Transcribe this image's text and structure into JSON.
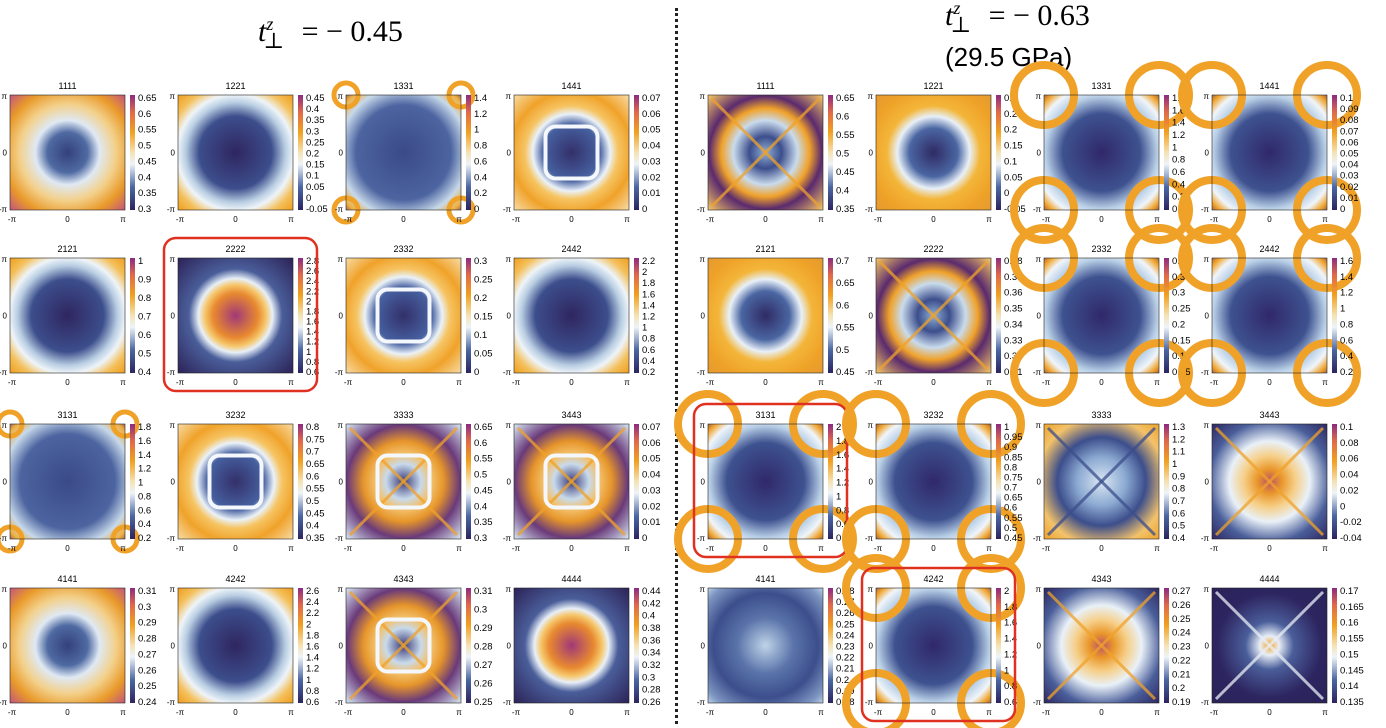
{
  "left_title": {
    "var": "t",
    "sup": "z",
    "sub": "⊥",
    "rest": " = − 0.45"
  },
  "right_title": {
    "var": "t",
    "sup": "z",
    "sub": "⊥",
    "rest": " = − 0.63",
    "line2": "(29.5 GPa)"
  },
  "axis_ticks": {
    "x": [
      "-π",
      "0",
      "π"
    ],
    "y": [
      "π",
      "0",
      "-π"
    ]
  },
  "colors": {
    "low": "#3a2060",
    "mid_dark": "#3c4e8c",
    "mid_light": "#e6eff7",
    "high": "#f3ac1c",
    "accent_box": "#e03020"
  },
  "panels": [
    {
      "group": "left",
      "row": 0,
      "col": 0,
      "label": "1111",
      "cbar": [
        "0.65",
        "0.6",
        "0.55",
        "0.5",
        "0.45",
        "0.4",
        "0.35",
        "0.3"
      ],
      "pattern": "corners-orange"
    },
    {
      "group": "left",
      "row": 0,
      "col": 1,
      "label": "1221",
      "cbar": [
        "0.45",
        "0.4",
        "0.35",
        "0.3",
        "0.25",
        "0.2",
        "0.15",
        "0.1",
        "0.05",
        "0",
        "-0.05"
      ],
      "pattern": "square-blue"
    },
    {
      "group": "left",
      "row": 0,
      "col": 2,
      "label": "1331",
      "cbar": [
        "1.4",
        "1.2",
        "1",
        "0.8",
        "0.6",
        "0.4",
        "0.2",
        "0"
      ],
      "pattern": "blue-corner-spots"
    },
    {
      "group": "left",
      "row": 0,
      "col": 3,
      "label": "1441",
      "cbar": [
        "0.07",
        "0.06",
        "0.05",
        "0.04",
        "0.03",
        "0.02",
        "0.01",
        "0"
      ],
      "pattern": "orange-frame"
    },
    {
      "group": "left",
      "row": 1,
      "col": 0,
      "label": "2121",
      "cbar": [
        "1",
        "0.9",
        "0.8",
        "0.7",
        "0.6",
        "0.5",
        "0.4"
      ],
      "pattern": "square-blue"
    },
    {
      "group": "left",
      "row": 1,
      "col": 1,
      "label": "2222",
      "cbar": [
        "2.8",
        "2.6",
        "2.4",
        "2.2",
        "2",
        "1.8",
        "1.6",
        "1.4",
        "1.2",
        "1",
        "0.8",
        "0.6"
      ],
      "pattern": "inner-orange",
      "highlight": true
    },
    {
      "group": "left",
      "row": 1,
      "col": 2,
      "label": "2332",
      "cbar": [
        "0.3",
        "0.25",
        "0.2",
        "0.15",
        "0.1",
        "0.05",
        "0"
      ],
      "pattern": "orange-frame"
    },
    {
      "group": "left",
      "row": 1,
      "col": 3,
      "label": "2442",
      "cbar": [
        "2.2",
        "2",
        "1.8",
        "1.6",
        "1.4",
        "1.2",
        "1",
        "0.8",
        "0.6",
        "0.4",
        "0.2"
      ],
      "pattern": "square-blue"
    },
    {
      "group": "left",
      "row": 2,
      "col": 0,
      "label": "3131",
      "cbar": [
        "1.8",
        "1.6",
        "1.4",
        "1.2",
        "1",
        "0.8",
        "0.6",
        "0.4",
        "0.2"
      ],
      "pattern": "blue-corner-spots"
    },
    {
      "group": "left",
      "row": 2,
      "col": 1,
      "label": "3232",
      "cbar": [
        "0.8",
        "0.75",
        "0.7",
        "0.65",
        "0.6",
        "0.55",
        "0.5",
        "0.45",
        "0.4",
        "0.35"
      ],
      "pattern": "orange-frame"
    },
    {
      "group": "left",
      "row": 2,
      "col": 2,
      "label": "3333",
      "cbar": [
        "0.65",
        "0.6",
        "0.55",
        "0.5",
        "0.45",
        "0.4",
        "0.35",
        "0.3"
      ],
      "pattern": "cross-orange"
    },
    {
      "group": "left",
      "row": 2,
      "col": 3,
      "label": "3443",
      "cbar": [
        "0.07",
        "0.06",
        "0.05",
        "0.04",
        "0.03",
        "0.02",
        "0.01",
        "0"
      ],
      "pattern": "cross-orange"
    },
    {
      "group": "left",
      "row": 3,
      "col": 0,
      "label": "4141",
      "cbar": [
        "0.31",
        "0.3",
        "0.29",
        "0.28",
        "0.27",
        "0.26",
        "0.25",
        "0.24"
      ],
      "pattern": "corners-orange"
    },
    {
      "group": "left",
      "row": 3,
      "col": 1,
      "label": "4242",
      "cbar": [
        "2.6",
        "2.4",
        "2.2",
        "2",
        "1.8",
        "1.6",
        "1.4",
        "1.2",
        "1",
        "0.8",
        "0.6"
      ],
      "pattern": "square-blue"
    },
    {
      "group": "left",
      "row": 3,
      "col": 2,
      "label": "4343",
      "cbar": [
        "0.31",
        "0.3",
        "0.29",
        "0.28",
        "0.27",
        "0.26",
        "0.25"
      ],
      "pattern": "cross-orange"
    },
    {
      "group": "left",
      "row": 3,
      "col": 3,
      "label": "4444",
      "cbar": [
        "0.44",
        "0.42",
        "0.4",
        "0.38",
        "0.36",
        "0.34",
        "0.32",
        "0.3",
        "0.28",
        "0.26"
      ],
      "pattern": "inner-orange"
    },
    {
      "group": "right",
      "row": 0,
      "col": 0,
      "label": "1111",
      "cbar": [
        "0.65",
        "0.6",
        "0.55",
        "0.5",
        "0.45",
        "0.4",
        "0.35"
      ],
      "pattern": "ring-cross"
    },
    {
      "group": "right",
      "row": 0,
      "col": 1,
      "label": "1221",
      "cbar": [
        "0.3",
        "0.25",
        "0.2",
        "0.15",
        "0.1",
        "0.05",
        "0",
        "-0.05"
      ],
      "pattern": "ring-orange"
    },
    {
      "group": "right",
      "row": 0,
      "col": 2,
      "label": "1331",
      "cbar": [
        "1.8",
        "1.6",
        "1.4",
        "1.2",
        "1",
        "0.8",
        "0.6",
        "0.4",
        "0.2",
        "0"
      ],
      "pattern": "blue-arcs"
    },
    {
      "group": "right",
      "row": 0,
      "col": 3,
      "label": "1441",
      "cbar": [
        "0.1",
        "0.09",
        "0.08",
        "0.07",
        "0.06",
        "0.05",
        "0.04",
        "0.03",
        "0.02",
        "0.01",
        "0"
      ],
      "pattern": "blue-arcs"
    },
    {
      "group": "right",
      "row": 1,
      "col": 0,
      "label": "2121",
      "cbar": [
        "0.7",
        "0.65",
        "0.6",
        "0.55",
        "0.5",
        "0.45"
      ],
      "pattern": "ring-orange"
    },
    {
      "group": "right",
      "row": 1,
      "col": 1,
      "label": "2222",
      "cbar": [
        "0.38",
        "0.37",
        "0.36",
        "0.35",
        "0.34",
        "0.33",
        "0.32",
        "0.31"
      ],
      "pattern": "ring-cross"
    },
    {
      "group": "right",
      "row": 1,
      "col": 2,
      "label": "2332",
      "cbar": [
        "0.4",
        "0.35",
        "0.3",
        "0.25",
        "0.2",
        "0.15",
        "0.1",
        "0.05"
      ],
      "pattern": "blue-arcs"
    },
    {
      "group": "right",
      "row": 1,
      "col": 3,
      "label": "2442",
      "cbar": [
        "1.6",
        "1.4",
        "1.2",
        "1",
        "0.8",
        "0.6",
        "0.4",
        "0.2"
      ],
      "pattern": "blue-arcs"
    },
    {
      "group": "right",
      "row": 2,
      "col": 0,
      "label": "3131",
      "cbar": [
        "2",
        "1.8",
        "1.6",
        "1.4",
        "1.2",
        "1",
        "0.8",
        "0.6",
        "0.4"
      ],
      "pattern": "blue-arcs",
      "highlight": true
    },
    {
      "group": "right",
      "row": 2,
      "col": 1,
      "label": "3232",
      "cbar": [
        "1",
        "0.95",
        "0.9",
        "0.85",
        "0.8",
        "0.75",
        "0.7",
        "0.65",
        "0.6",
        "0.55",
        "0.5",
        "0.45"
      ],
      "pattern": "blue-arcs"
    },
    {
      "group": "right",
      "row": 2,
      "col": 2,
      "label": "3333",
      "cbar": [
        "1.3",
        "1.2",
        "1.1",
        "1",
        "0.9",
        "0.8",
        "0.7",
        "0.6",
        "0.5",
        "0.4"
      ],
      "pattern": "star-blue"
    },
    {
      "group": "right",
      "row": 2,
      "col": 3,
      "label": "3443",
      "cbar": [
        "0.1",
        "0.08",
        "0.06",
        "0.04",
        "0.02",
        "0",
        "-0.02",
        "-0.04"
      ],
      "pattern": "star-orange"
    },
    {
      "group": "right",
      "row": 3,
      "col": 0,
      "label": "4141",
      "cbar": [
        "0.28",
        "0.27",
        "0.26",
        "0.25",
        "0.24",
        "0.23",
        "0.22",
        "0.21",
        "0.2",
        "0.19",
        "0.18"
      ],
      "pattern": "blue-soft"
    },
    {
      "group": "right",
      "row": 3,
      "col": 1,
      "label": "4242",
      "cbar": [
        "2",
        "1.8",
        "1.6",
        "1.4",
        "1.2",
        "1",
        "0.8",
        "0.6"
      ],
      "pattern": "blue-arcs",
      "highlight": true
    },
    {
      "group": "right",
      "row": 3,
      "col": 2,
      "label": "4343",
      "cbar": [
        "0.27",
        "0.26",
        "0.25",
        "0.24",
        "0.23",
        "0.22",
        "0.21",
        "0.2",
        "0.19"
      ],
      "pattern": "star-orange"
    },
    {
      "group": "right",
      "row": 3,
      "col": 3,
      "label": "4444",
      "cbar": [
        "0.17",
        "0.165",
        "0.16",
        "0.155",
        "0.15",
        "0.145",
        "0.14",
        "0.135"
      ],
      "pattern": "star-dark"
    }
  ]
}
